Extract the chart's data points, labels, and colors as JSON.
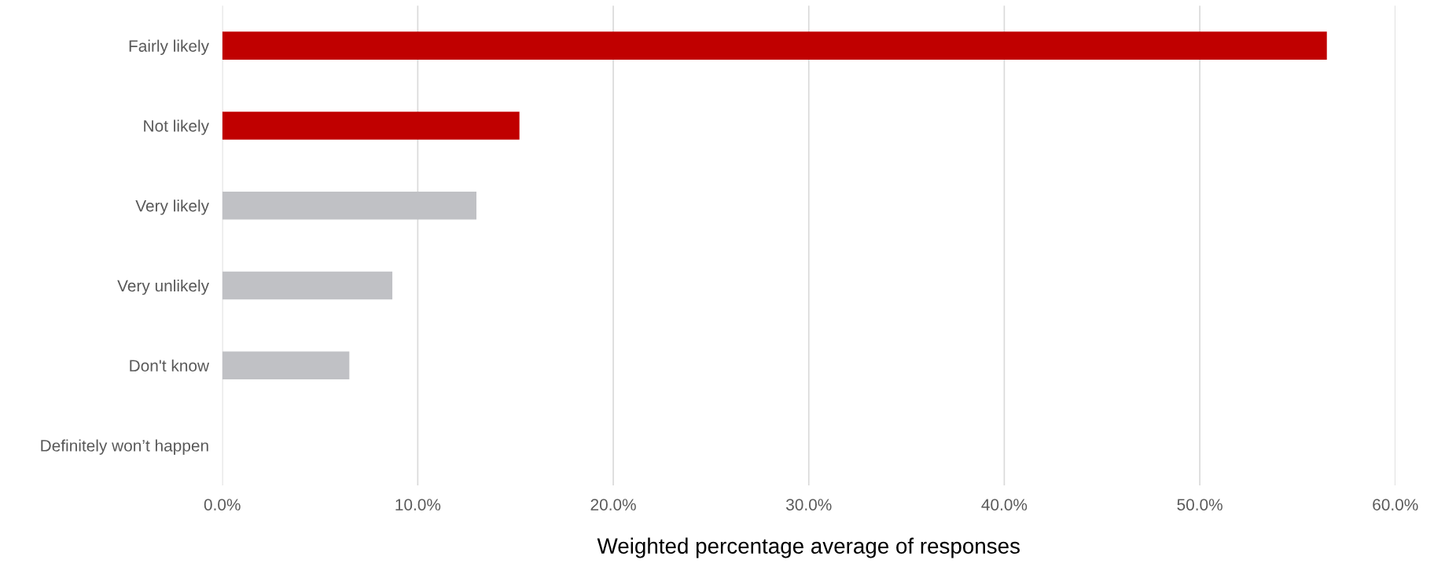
{
  "chart_data": {
    "type": "bar",
    "orientation": "horizontal",
    "categories": [
      "Fairly likely",
      "Not likely",
      "Very likely",
      "Very unlikely",
      "Don't know",
      "Definitely won’t happen"
    ],
    "values": [
      56.5,
      15.2,
      13.0,
      8.7,
      6.5,
      0
    ],
    "colors": [
      "#c00000",
      "#c00000",
      "#c0c1c5",
      "#c0c1c5",
      "#c0c1c5",
      "#c0c1c5"
    ],
    "xlabel": "Weighted percentage average of responses",
    "xlim": [
      0,
      60
    ],
    "xticks": [
      {
        "value": 0,
        "label": "0.0%"
      },
      {
        "value": 10,
        "label": "10.0%"
      },
      {
        "value": 20,
        "label": "20.0%"
      },
      {
        "value": 30,
        "label": "30.0%"
      },
      {
        "value": 40,
        "label": "40.0%"
      },
      {
        "value": 50,
        "label": "50.0%"
      },
      {
        "value": 60,
        "label": "60.0%"
      }
    ],
    "grid": "x"
  }
}
